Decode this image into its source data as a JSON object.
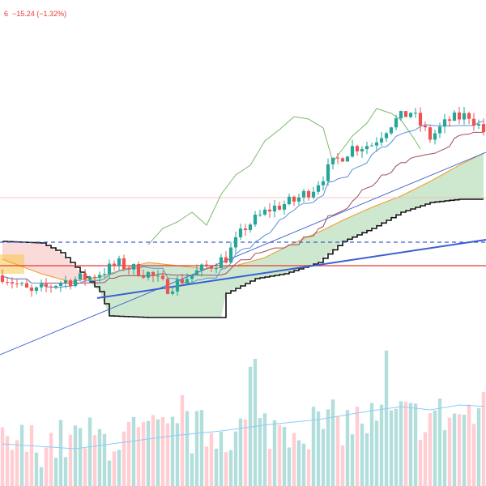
{
  "header": {
    "price_change_text": "6  −15.24 (−1.32%)"
  },
  "colors": {
    "up_candle": "#26a69a",
    "down_candle": "#ef5350",
    "cloud_bull": "#a5d6a7",
    "cloud_bear": "#f8bbbb",
    "conversion_line": "#5b8fd9",
    "base_line": "#9c4b63",
    "lagging_span": "#7cb86b",
    "leading_span_a": "#f0a030",
    "leading_span_b": "#111111",
    "trendline": "#3a5fd0",
    "support_line": "#e53935",
    "dashed_level": "#3a5fd0",
    "resistance_line": "#f4b4b4",
    "volume_up": "#b2dfdb",
    "volume_down": "#ffcdd2",
    "volume_ma": "#90caf9",
    "highlight_box": "#f7c948"
  },
  "chart_data": {
    "type": "candlestick",
    "title": "",
    "xlabel": "",
    "ylabel": "",
    "bars": 100,
    "ylim": [
      0,
      600
    ],
    "horizontal_levels": [
      {
        "name": "resistance",
        "value": 356
      },
      {
        "name": "dashed",
        "value": 301
      },
      {
        "name": "support",
        "value": 272
      }
    ],
    "trendlines": [
      {
        "name": "steep",
        "from": [
          0,
          162
        ],
        "to": [
          100,
          412
        ]
      },
      {
        "name": "shallow",
        "from": [
          20,
          232
        ],
        "to": [
          100,
          304
        ]
      }
    ],
    "candle_waypoints": [
      [
        0,
        260
      ],
      [
        6,
        238
      ],
      [
        12,
        252
      ],
      [
        18,
        258
      ],
      [
        24,
        274
      ],
      [
        30,
        262
      ],
      [
        34,
        245
      ],
      [
        40,
        264
      ],
      [
        46,
        282
      ],
      [
        50,
        320
      ],
      [
        55,
        342
      ],
      [
        60,
        352
      ],
      [
        64,
        368
      ],
      [
        68,
        398
      ],
      [
        72,
        418
      ],
      [
        76,
        422
      ],
      [
        80,
        448
      ],
      [
        84,
        462
      ],
      [
        88,
        430
      ],
      [
        92,
        452
      ],
      [
        96,
        458
      ],
      [
        99,
        438
      ]
    ],
    "lagging_waypoints": [
      [
        30,
        298
      ],
      [
        33,
        318
      ],
      [
        36,
        326
      ],
      [
        39,
        338
      ],
      [
        42,
        322
      ],
      [
        45,
        360
      ],
      [
        48,
        384
      ],
      [
        51,
        396
      ],
      [
        54,
        426
      ],
      [
        57,
        440
      ],
      [
        60,
        456
      ],
      [
        63,
        453
      ],
      [
        66,
        442
      ],
      [
        68,
        400
      ],
      [
        70,
        416
      ],
      [
        72,
        432
      ],
      [
        75,
        448
      ],
      [
        77,
        466
      ],
      [
        80,
        460
      ],
      [
        82,
        452
      ],
      [
        85,
        426
      ],
      [
        86,
        416
      ]
    ],
    "cloud_b_waypoints": [
      [
        0,
        302
      ],
      [
        8,
        300
      ],
      [
        12,
        288
      ],
      [
        20,
        240
      ],
      [
        22,
        210
      ],
      [
        30,
        208
      ],
      [
        38,
        208
      ],
      [
        45,
        208
      ],
      [
        46,
        238
      ],
      [
        52,
        256
      ],
      [
        58,
        262
      ],
      [
        65,
        276
      ],
      [
        70,
        302
      ],
      [
        76,
        318
      ],
      [
        82,
        338
      ],
      [
        88,
        350
      ],
      [
        94,
        354
      ],
      [
        100,
        354
      ]
    ],
    "cloud_a_waypoints": [
      [
        0,
        280
      ],
      [
        8,
        262
      ],
      [
        14,
        252
      ],
      [
        20,
        258
      ],
      [
        25,
        268
      ],
      [
        30,
        276
      ],
      [
        36,
        272
      ],
      [
        42,
        268
      ],
      [
        48,
        272
      ],
      [
        54,
        282
      ],
      [
        60,
        300
      ],
      [
        66,
        316
      ],
      [
        70,
        328
      ],
      [
        76,
        344
      ],
      [
        82,
        358
      ],
      [
        88,
        376
      ],
      [
        94,
        396
      ],
      [
        100,
        414
      ]
    ],
    "volume_ma_waypoints": [
      [
        0,
        52
      ],
      [
        15,
        46
      ],
      [
        25,
        54
      ],
      [
        35,
        62
      ],
      [
        45,
        68
      ],
      [
        55,
        76
      ],
      [
        65,
        82
      ],
      [
        75,
        92
      ],
      [
        82,
        98
      ],
      [
        88,
        94
      ],
      [
        94,
        100
      ],
      [
        100,
        98
      ]
    ]
  }
}
